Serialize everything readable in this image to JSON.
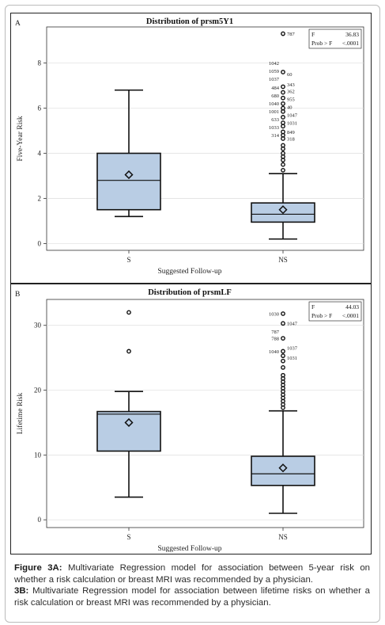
{
  "caption": {
    "fig3a_label": "Figure 3A:",
    "fig3a_text": " Multivariate Regression model for association between 5-year risk on whether a risk calculation or breast MRI was recommended by a physician.",
    "fig3b_label": "3B:",
    "fig3b_text": " Multivariate Regression model for association between lifetime risks on whether a risk calculation or breast MRI was recommended by a physician."
  },
  "chart_data": [
    {
      "type": "box",
      "panel_label": "A",
      "title": "Distribution of prsm5Y1",
      "xlabel": "Suggested Follow-up",
      "ylabel": "Five-Year Risk",
      "categories": [
        "S",
        "NS"
      ],
      "ylim": [
        -0.3,
        9.6
      ],
      "yticks": [
        0,
        2,
        4,
        6,
        8
      ],
      "grid": true,
      "stats_box": {
        "position": "top-right",
        "rows": [
          [
            "F",
            "36.83"
          ],
          [
            "Prob > F",
            "<.0001"
          ]
        ]
      },
      "boxes": [
        {
          "category": "S",
          "whisker_low": 1.2,
          "q1": 1.5,
          "median": 2.8,
          "q3": 4.0,
          "whisker_high": 6.8,
          "mean": 3.05,
          "outliers": []
        },
        {
          "category": "NS",
          "whisker_low": 0.2,
          "q1": 0.95,
          "median": 1.3,
          "q3": 1.8,
          "whisker_high": 3.1,
          "mean": 1.5,
          "outliers": [
            3.25,
            3.5,
            3.7,
            3.85,
            4.0,
            4.2,
            4.35,
            4.65,
            4.8,
            4.95,
            5.2,
            5.35,
            5.6,
            5.85,
            6.0,
            6.2,
            6.45,
            6.7,
            6.95,
            7.6,
            9.3
          ],
          "outlier_labels": [
            {
              "label": "787",
              "y": 9.3,
              "side": "right"
            },
            {
              "label": "1042",
              "y": 8.0,
              "side": "left"
            },
            {
              "label": "1059",
              "y": 7.65,
              "side": "left"
            },
            {
              "label": "60",
              "y": 7.5,
              "side": "right"
            },
            {
              "label": "1037",
              "y": 7.3,
              "side": "left"
            },
            {
              "label": "343",
              "y": 7.05,
              "side": "right"
            },
            {
              "label": "484",
              "y": 6.9,
              "side": "left"
            },
            {
              "label": "362",
              "y": 6.75,
              "side": "right"
            },
            {
              "label": "680",
              "y": 6.55,
              "side": "left"
            },
            {
              "label": "955",
              "y": 6.4,
              "side": "right"
            },
            {
              "label": "1040",
              "y": 6.2,
              "side": "left"
            },
            {
              "label": "40",
              "y": 6.05,
              "side": "right"
            },
            {
              "label": "1001",
              "y": 5.85,
              "side": "left"
            },
            {
              "label": "1047",
              "y": 5.7,
              "side": "right"
            },
            {
              "label": "633",
              "y": 5.5,
              "side": "left"
            },
            {
              "label": "1031",
              "y": 5.35,
              "side": "right"
            },
            {
              "label": "1033",
              "y": 5.15,
              "side": "left"
            },
            {
              "label": "849",
              "y": 4.95,
              "side": "right"
            },
            {
              "label": "314",
              "y": 4.8,
              "side": "left"
            },
            {
              "label": "318",
              "y": 4.65,
              "side": "right"
            }
          ]
        }
      ]
    },
    {
      "type": "box",
      "panel_label": "B",
      "title": "Distribution of prsmLF",
      "xlabel": "Suggested Follow-up",
      "ylabel": "Lifetime Risk",
      "categories": [
        "S",
        "NS"
      ],
      "ylim": [
        -1.2,
        34.0
      ],
      "yticks": [
        0,
        10,
        20,
        30
      ],
      "grid": true,
      "stats_box": {
        "position": "top-right",
        "rows": [
          [
            "F",
            "44.03"
          ],
          [
            "Prob > F",
            "<.0001"
          ]
        ]
      },
      "boxes": [
        {
          "category": "S",
          "whisker_low": 3.5,
          "q1": 10.6,
          "median": 16.3,
          "q3": 16.7,
          "whisker_high": 19.8,
          "mean": 15.0,
          "outliers": [
            26.0,
            32.0
          ]
        },
        {
          "category": "NS",
          "whisker_low": 1.0,
          "q1": 5.3,
          "median": 7.1,
          "q3": 9.8,
          "whisker_high": 16.8,
          "mean": 8.0,
          "outliers": [
            17.3,
            17.8,
            18.3,
            18.8,
            19.3,
            19.8,
            20.3,
            20.8,
            21.3,
            21.8,
            22.3,
            23.5,
            24.5,
            25.3,
            26.0,
            28.0,
            30.3,
            31.8
          ],
          "outlier_labels": [
            {
              "label": "1030",
              "y": 31.8,
              "side": "left"
            },
            {
              "label": "1047",
              "y": 30.3,
              "side": "right"
            },
            {
              "label": "787",
              "y": 29.0,
              "side": "left"
            },
            {
              "label": "788",
              "y": 28.0,
              "side": "left"
            },
            {
              "label": "1040",
              "y": 26.0,
              "side": "left"
            },
            {
              "label": "1037",
              "y": 26.5,
              "side": "right"
            },
            {
              "label": "1031",
              "y": 25.0,
              "side": "right"
            }
          ]
        }
      ]
    }
  ]
}
